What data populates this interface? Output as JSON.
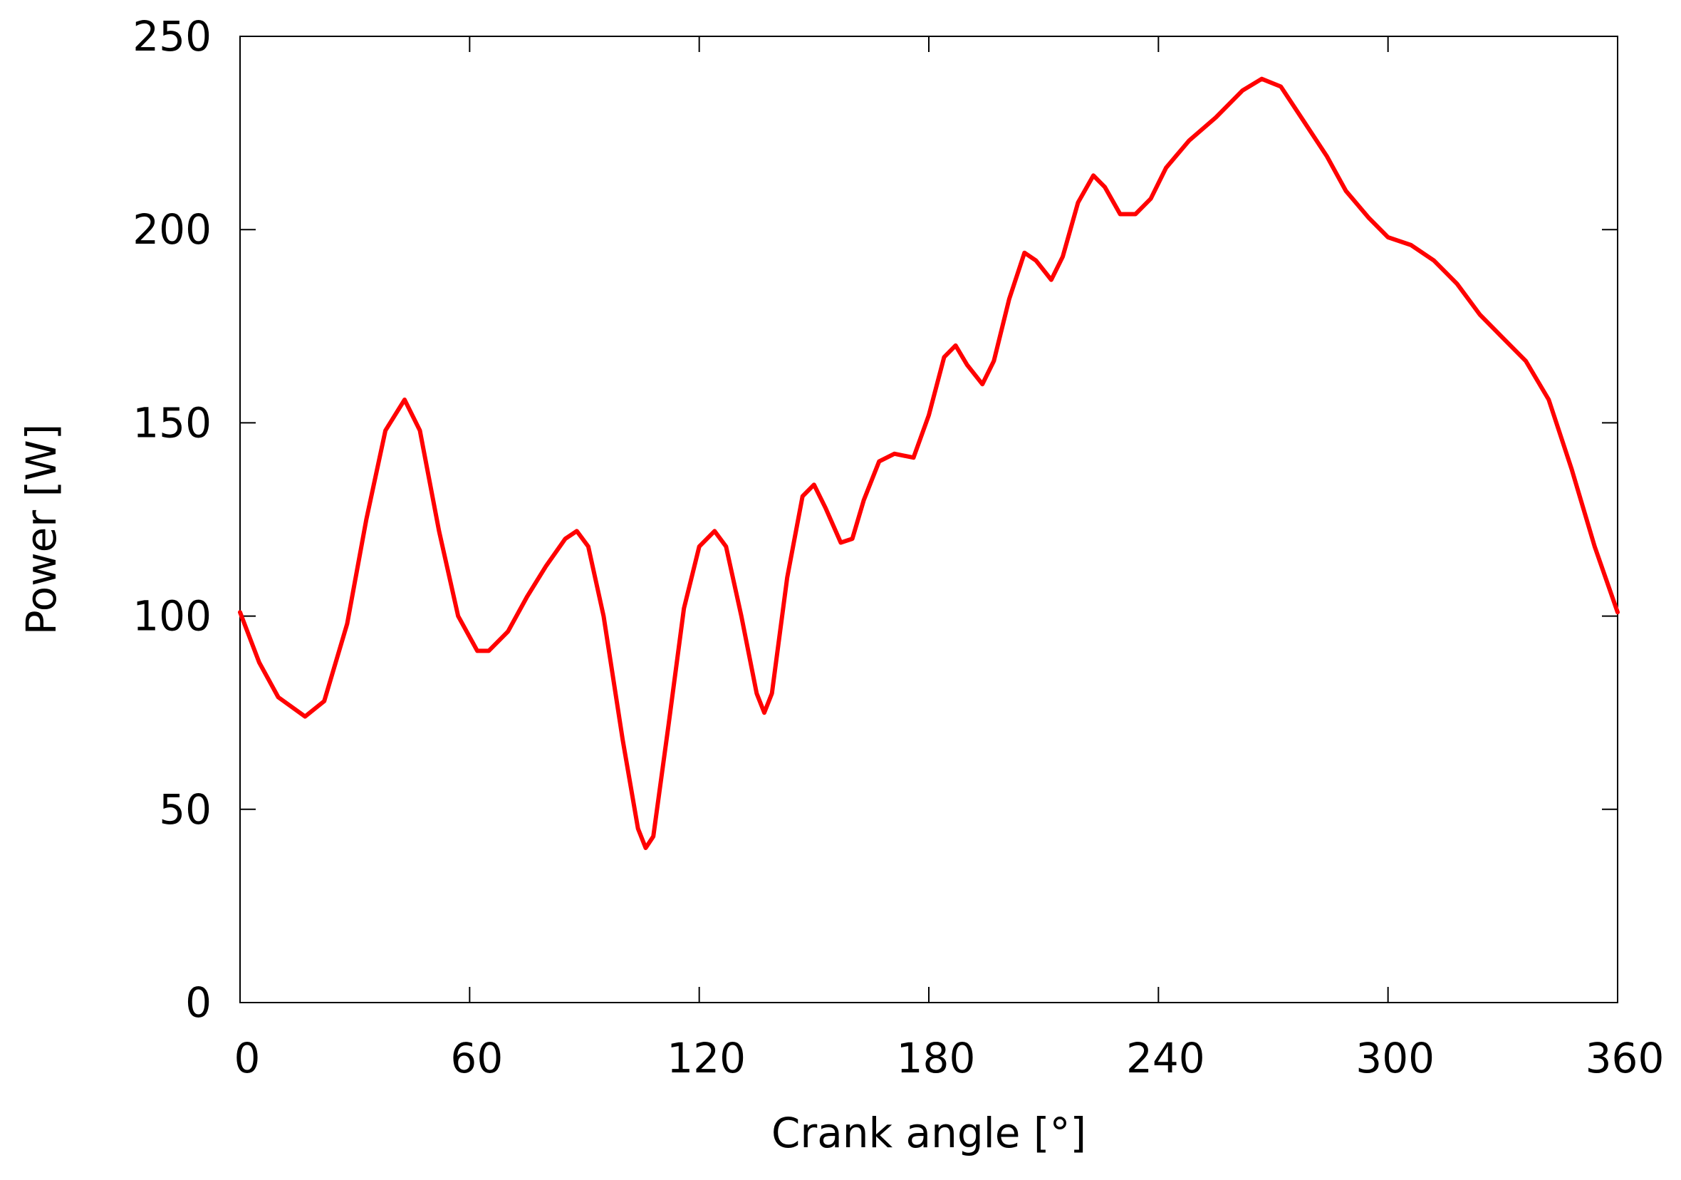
{
  "chart_data": {
    "type": "line",
    "x_label": "Crank angle [°]",
    "y_label": "Power [W]",
    "x": [
      0,
      5,
      10,
      17,
      22,
      28,
      33,
      38,
      43,
      47,
      52,
      57,
      62,
      65,
      70,
      75,
      80,
      85,
      88,
      91,
      95,
      100,
      104,
      106,
      108,
      112,
      116,
      120,
      124,
      127,
      131,
      135,
      137,
      139,
      143,
      147,
      150,
      153,
      157,
      160,
      163,
      167,
      171,
      176,
      180,
      184,
      187,
      190,
      194,
      197,
      201,
      205,
      208,
      212,
      215,
      219,
      223,
      226,
      230,
      234,
      238,
      242,
      248,
      255,
      262,
      267,
      272,
      278,
      284,
      289,
      295,
      300,
      306,
      312,
      318,
      324,
      330,
      336,
      342,
      348,
      354,
      360
    ],
    "values": [
      101,
      88,
      79,
      74,
      78,
      98,
      125,
      148,
      156,
      148,
      122,
      100,
      91,
      91,
      96,
      105,
      113,
      120,
      122,
      118,
      100,
      68,
      45,
      40,
      43,
      72,
      102,
      118,
      122,
      118,
      100,
      80,
      75,
      80,
      110,
      131,
      134,
      128,
      119,
      120,
      130,
      140,
      142,
      141,
      152,
      167,
      170,
      165,
      160,
      166,
      182,
      194,
      192,
      187,
      193,
      207,
      214,
      211,
      204,
      204,
      208,
      216,
      223,
      229,
      236,
      239,
      237,
      228,
      219,
      210,
      203,
      198,
      196,
      192,
      186,
      178,
      172,
      166,
      156,
      138,
      118,
      101
    ],
    "color": "#ff0000",
    "xlim": [
      0,
      360
    ],
    "xticks": [
      0,
      60,
      120,
      180,
      240,
      300,
      360
    ],
    "ylim": [
      0,
      250
    ],
    "yticks": [
      0,
      50,
      100,
      150,
      200,
      250
    ],
    "grid": false
  }
}
